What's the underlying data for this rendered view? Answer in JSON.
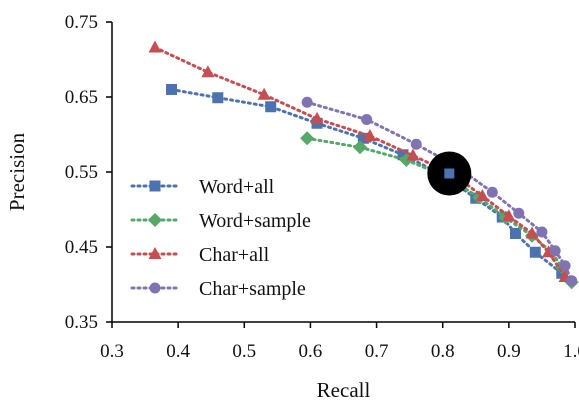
{
  "chart_data": {
    "type": "line",
    "title": "",
    "xlabel": "Recall",
    "ylabel": "Precision",
    "xlim": [
      0.3,
      1.0
    ],
    "ylim": [
      0.35,
      0.75
    ],
    "xticks": [
      "0.3",
      "0.4",
      "0.5",
      "0.6",
      "0.7",
      "0.8",
      "0.9",
      "1.0"
    ],
    "yticks": [
      "0.35",
      "0.45",
      "0.55",
      "0.65",
      "0.75"
    ],
    "grid": false,
    "legend_position": "left-center",
    "highlight": {
      "x": 0.81,
      "y": 0.548
    },
    "series": [
      {
        "name": "Word+all",
        "marker": "square",
        "color": "#4C72B0",
        "x": [
          0.39,
          0.46,
          0.54,
          0.61,
          0.68,
          0.74,
          0.8,
          0.85,
          0.89,
          0.91,
          0.94,
          0.98
        ],
        "y": [
          0.66,
          0.649,
          0.637,
          0.615,
          0.595,
          0.573,
          0.546,
          0.515,
          0.49,
          0.468,
          0.443,
          0.415
        ]
      },
      {
        "name": "Word+sample",
        "marker": "diamond",
        "color": "#55A868",
        "x": [
          0.595,
          0.675,
          0.745,
          0.805,
          0.855,
          0.895,
          0.935,
          0.965,
          0.98,
          0.995
        ],
        "y": [
          0.595,
          0.583,
          0.566,
          0.544,
          0.516,
          0.489,
          0.465,
          0.443,
          0.423,
          0.403
        ]
      },
      {
        "name": "Char+all",
        "marker": "triangle",
        "color": "#C44E52",
        "x": [
          0.365,
          0.445,
          0.53,
          0.61,
          0.69,
          0.755,
          0.815,
          0.86,
          0.9,
          0.935,
          0.96,
          0.985
        ],
        "y": [
          0.716,
          0.683,
          0.653,
          0.621,
          0.598,
          0.572,
          0.547,
          0.518,
          0.491,
          0.468,
          0.443,
          0.41
        ]
      },
      {
        "name": "Char+sample",
        "marker": "circle",
        "color": "#8172B2",
        "x": [
          0.595,
          0.685,
          0.76,
          0.82,
          0.875,
          0.915,
          0.95,
          0.97,
          0.985,
          0.995
        ],
        "y": [
          0.643,
          0.62,
          0.587,
          0.558,
          0.523,
          0.495,
          0.47,
          0.445,
          0.425,
          0.405
        ]
      }
    ]
  }
}
